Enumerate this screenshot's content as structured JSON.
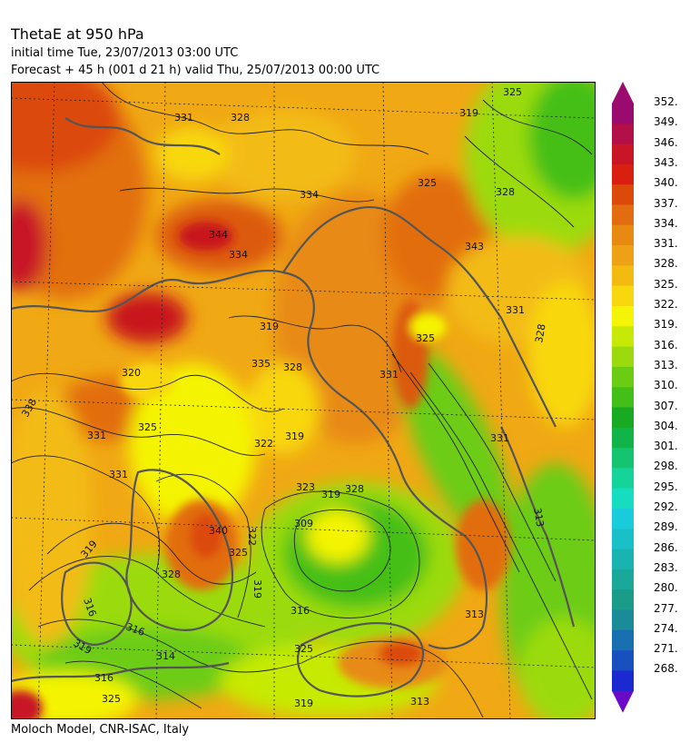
{
  "header": {
    "title": "ThetaE at 950 hPa",
    "initial_time": "initial time  Tue, 23/07/2013  03:00 UTC",
    "forecast": "Forecast  +  45 h  (001 d 21 h)  valid Thu, 25/07/2013 00:00 UTC"
  },
  "footer": {
    "credit": "Moloch Model, CNR-ISAC, Italy"
  },
  "legend": {
    "levels": [
      "352.",
      "349.",
      "346.",
      "343.",
      "340.",
      "337.",
      "334.",
      "331.",
      "328.",
      "325.",
      "322.",
      "319.",
      "316.",
      "313.",
      "310.",
      "307.",
      "304.",
      "301.",
      "298.",
      "295.",
      "292.",
      "289.",
      "286.",
      "283.",
      "280.",
      "277.",
      "274.",
      "271.",
      "268."
    ],
    "colors": [
      "#9b0a6e",
      "#b3104a",
      "#c81626",
      "#d81f10",
      "#dc4a0a",
      "#e26d10",
      "#e88a12",
      "#eea114",
      "#f3bb12",
      "#f8d80c",
      "#f4f406",
      "#c6ea06",
      "#9bdb0e",
      "#6ccc14",
      "#44bf18",
      "#18aa20",
      "#10b448",
      "#14c470",
      "#14d49a",
      "#16dcc0",
      "#18ccdc",
      "#1ac0c8",
      "#1ab4b0",
      "#1aa89a",
      "#1a9c88",
      "#1a8c98",
      "#1870b0",
      "#1850c0",
      "#1a2ad0"
    ],
    "top_arrow_color": "#9b0a6e",
    "bottom_arrow_color": "#6a0ac8"
  },
  "map": {
    "contour_labels": [
      {
        "text": "331"
      },
      {
        "text": "328"
      },
      {
        "text": "334"
      },
      {
        "text": "325"
      },
      {
        "text": "328"
      },
      {
        "text": "344"
      },
      {
        "text": "334"
      },
      {
        "text": "343"
      },
      {
        "text": "331"
      },
      {
        "text": "319"
      },
      {
        "text": "325"
      },
      {
        "text": "320"
      },
      {
        "text": "335"
      },
      {
        "text": "328"
      },
      {
        "text": "331"
      },
      {
        "text": "338"
      },
      {
        "text": "331"
      },
      {
        "text": "325"
      },
      {
        "text": "322"
      },
      {
        "text": "319"
      },
      {
        "text": "331"
      },
      {
        "text": "328"
      },
      {
        "text": "313"
      },
      {
        "text": "319"
      },
      {
        "text": "309"
      },
      {
        "text": "322"
      },
      {
        "text": "325"
      },
      {
        "text": "340"
      },
      {
        "text": "328"
      },
      {
        "text": "319"
      },
      {
        "text": "316"
      },
      {
        "text": "319"
      },
      {
        "text": "316"
      },
      {
        "text": "314"
      },
      {
        "text": "319"
      },
      {
        "text": "325"
      },
      {
        "text": "325"
      },
      {
        "text": "316"
      },
      {
        "text": "319"
      },
      {
        "text": "313"
      },
      {
        "text": "328"
      },
      {
        "text": "319"
      },
      {
        "text": "325"
      },
      {
        "text": "323"
      },
      {
        "text": "331"
      },
      {
        "text": "313"
      },
      {
        "text": "316"
      }
    ]
  }
}
